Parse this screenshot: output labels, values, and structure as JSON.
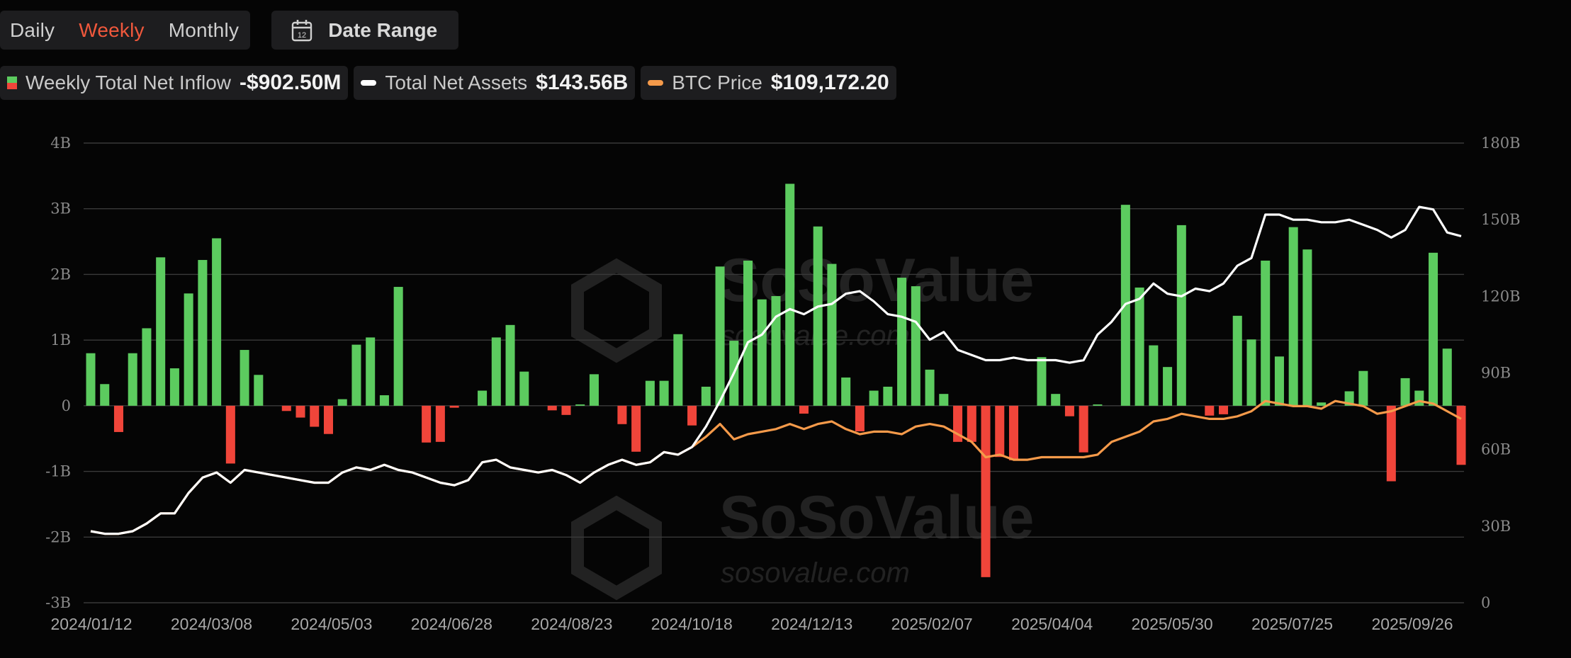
{
  "toolbar": {
    "periods": [
      "Daily",
      "Weekly",
      "Monthly"
    ],
    "active_period": "Weekly",
    "date_range_label": "Date Range",
    "calendar_day": "12"
  },
  "legend": [
    {
      "name": "Weekly Total Net Inflow",
      "value": "-$902.50M",
      "kind": "bar"
    },
    {
      "name": "Total Net Assets",
      "value": "$143.56B",
      "kind": "line",
      "color": "#ffffff"
    },
    {
      "name": "BTC Price",
      "value": "$109,172.20",
      "kind": "line",
      "color": "#f59a4a"
    }
  ],
  "watermark": {
    "brand": "SoSoValue",
    "site": "sosovalue.com"
  },
  "colors": {
    "positive": "#5ccb5f",
    "negative": "#f0453a",
    "assets": "#ffffff",
    "btc": "#f59a4a",
    "grid": "#3a3a3a"
  },
  "chart_data": {
    "type": "bar",
    "title": "",
    "xlabel": "",
    "ylabel": "",
    "ylim": [
      -3,
      4
    ],
    "y2lim": [
      0,
      180
    ],
    "grid": true,
    "legend_position": "top-left",
    "y_ticks": [
      "4B",
      "3B",
      "2B",
      "1B",
      "0",
      "-1B",
      "-2B",
      "-3B"
    ],
    "y2_ticks": [
      "180B",
      "150B",
      "120B",
      "90B",
      "60B",
      "30B",
      "0"
    ],
    "x_ticks": [
      "2024/01/12",
      "2024/03/08",
      "2024/05/03",
      "2024/06/28",
      "2024/08/23",
      "2024/10/18",
      "2024/12/13",
      "2025/02/07",
      "2025/04/04",
      "2025/05/30",
      "2025/07/25",
      "2025/09/26"
    ],
    "series": [
      {
        "name": "Weekly Total Net Inflow",
        "axis": "left",
        "unit": "B",
        "values": [
          0.8,
          0.33,
          -0.4,
          0.8,
          1.18,
          2.26,
          0.57,
          1.71,
          2.22,
          2.55,
          -0.88,
          0.85,
          0.47,
          0,
          -0.08,
          -0.18,
          -0.32,
          -0.43,
          0.1,
          0.93,
          1.04,
          0.16,
          1.81,
          0,
          -0.56,
          -0.55,
          -0.03,
          0,
          0.23,
          1.04,
          1.23,
          0.52,
          0,
          -0.07,
          -0.14,
          0.02,
          0.48,
          0,
          -0.28,
          -0.7,
          0.38,
          0.38,
          1.09,
          -0.3,
          0.29,
          2.12,
          0.99,
          2.21,
          1.62,
          1.67,
          3.38,
          -0.12,
          2.73,
          2.16,
          0.43,
          -0.39,
          0.23,
          0.29,
          1.95,
          1.82,
          0.55,
          0.18,
          -0.55,
          -0.55,
          -2.61,
          -0.78,
          -0.83,
          0,
          0.74,
          0.18,
          -0.16,
          -0.71,
          0.02,
          0,
          3.06,
          1.8,
          0.92,
          0.59,
          2.75,
          0,
          -0.15,
          -0.13,
          1.37,
          1.01,
          2.21,
          0.75,
          2.72,
          2.38,
          0.05,
          0,
          0.22,
          0.53,
          0,
          -1.15,
          0.42,
          0.23,
          2.33,
          0.87,
          -0.9
        ]
      },
      {
        "name": "Total Net Assets",
        "axis": "right",
        "unit": "B",
        "values": [
          28,
          27,
          27,
          28,
          31,
          35,
          35,
          43,
          49,
          51,
          47,
          52,
          51,
          50,
          49,
          48,
          47,
          47,
          51,
          53,
          52,
          54,
          52,
          51,
          49,
          47,
          46,
          48,
          55,
          56,
          53,
          52,
          51,
          52,
          50,
          47,
          51,
          54,
          56,
          54,
          55,
          59,
          58,
          61,
          69,
          79,
          90,
          102,
          105,
          112,
          115,
          113,
          116,
          117,
          121,
          122,
          118,
          113,
          112,
          110,
          103,
          106,
          99,
          97,
          95,
          95,
          96,
          95,
          95,
          95,
          94,
          95,
          105,
          110,
          117,
          119,
          125,
          121,
          120,
          123,
          122,
          125,
          132,
          135,
          152,
          152,
          150,
          150,
          149,
          149,
          150,
          148,
          146,
          143,
          146,
          155,
          154,
          145,
          143.56
        ]
      },
      {
        "name": "BTC Price",
        "axis": "right",
        "values": [
          28,
          27,
          27,
          28,
          31,
          35,
          35,
          43,
          49,
          51,
          47,
          52,
          51,
          50,
          49,
          48,
          47,
          47,
          51,
          53,
          52,
          54,
          52,
          51,
          49,
          47,
          46,
          48,
          55,
          56,
          53,
          52,
          51,
          52,
          50,
          47,
          51,
          54,
          56,
          54,
          55,
          59,
          58,
          61,
          65,
          70,
          64,
          66,
          67,
          68,
          70,
          68,
          70,
          71,
          68,
          66,
          67,
          67,
          66,
          69,
          70,
          69,
          66,
          63,
          57,
          58,
          56,
          56,
          57,
          57,
          57,
          57,
          58,
          63,
          65,
          67,
          71,
          72,
          74,
          73,
          72,
          72,
          73,
          75,
          79,
          78,
          77,
          77,
          76,
          79,
          78,
          77,
          74,
          75,
          77,
          79,
          78,
          75,
          72
        ]
      }
    ]
  }
}
